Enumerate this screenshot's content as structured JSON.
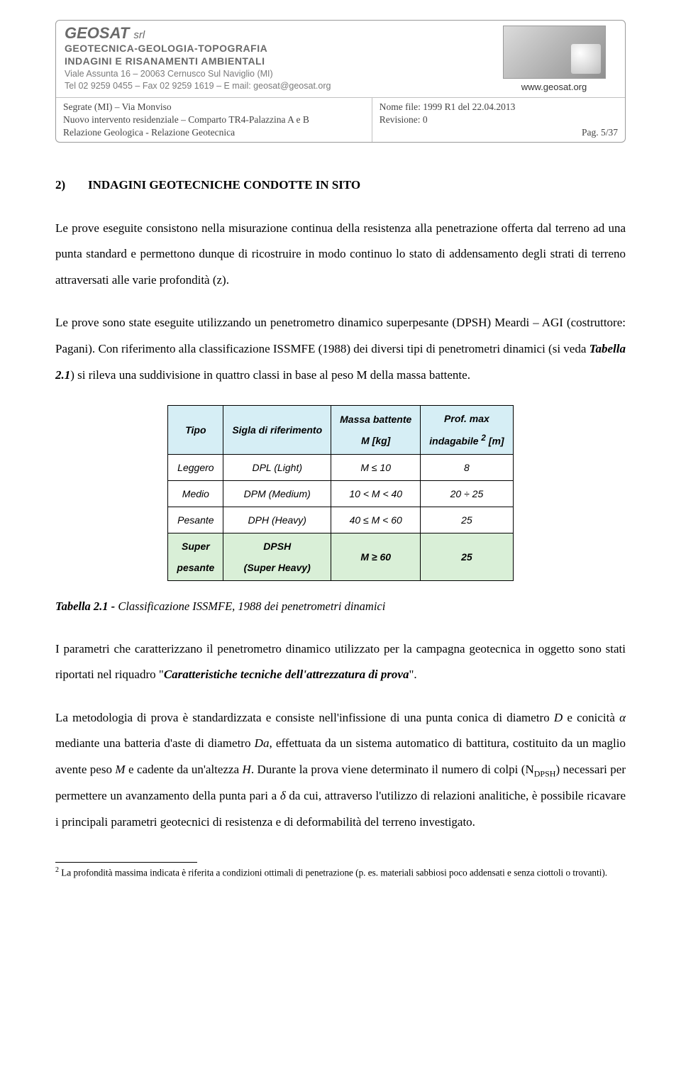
{
  "header": {
    "company": "GEOSAT",
    "company_suffix": "srl",
    "subtitle1": "GEOTECNICA-GEOLOGIA-TOPOGRAFIA",
    "subtitle2": "INDAGINI E RISANAMENTI AMBIENTALI",
    "addr1": "Viale Assunta 16 – 20063 Cernusco Sul Naviglio (MI)",
    "addr2": "Tel 02 9259 0455 – Fax 02 9259 1619 – E mail: geosat@geosat.org",
    "logo_caption": "www.geosat.org",
    "bl1": "Segrate (MI) – Via Monviso",
    "bl2": "Nuovo intervento residenziale – Comparto TR4-Palazzina A e B",
    "bl3": "Relazione Geologica - Relazione Geotecnica",
    "br1": "Nome file: 1999 R1 del 22.04.2013",
    "br2": "Revisione: 0",
    "br3": "Pag. 5/37"
  },
  "section": {
    "num": "2)",
    "title": "INDAGINI GEOTECNICHE CONDOTTE IN SITO"
  },
  "p1": "Le prove eseguite consistono nella misurazione continua della resistenza alla penetrazione offerta dal terreno ad una punta standard e permettono dunque di ricostruire in modo continuo lo stato di addensamento degli strati di terreno attraversati alle varie profondità (z).",
  "p2a": "Le prove sono state eseguite utilizzando un penetrometro dinamico superpesante (DPSH) Meardi – AGI (costruttore: Pagani). Con riferimento alla classificazione ISSMFE (1988) dei diversi tipi di penetrometri dinamici (si veda ",
  "p2b": "Tabella 2.1",
  "p2c": ") si rileva una suddivisione in quattro classi in base al peso M della massa battente.",
  "table": {
    "headers": [
      "Tipo",
      "Sigla di riferimento",
      "Massa battente\nM [kg]",
      "Prof. max\nindagabile ² [m]"
    ],
    "h2a": "Massa battente",
    "h2b": "M [kg]",
    "h3a": "Prof. max",
    "h3b": "indagabile ",
    "h3sup": "2",
    "h3c": " [m]",
    "rows": [
      [
        "Leggero",
        "DPL (Light)",
        "M ≤ 10",
        "8"
      ],
      [
        "Medio",
        "DPM (Medium)",
        "10 < M < 40",
        "20 ÷ 25"
      ],
      [
        "Pesante",
        "DPH (Heavy)",
        "40 ≤ M < 60",
        "25"
      ]
    ],
    "hlrow": {
      "c0a": "Super",
      "c0b": "pesante",
      "c1a": "DPSH",
      "c1b": "(Super Heavy)",
      "c2": "M ≥ 60",
      "c3": "25"
    },
    "colors": {
      "header_bg": "#d6eef5",
      "highlight_bg": "#d9efd7",
      "border": "#000000"
    }
  },
  "caption": {
    "label": "Tabella 2.1 - ",
    "text": "Classificazione ISSMFE, 1988 dei penetrometri dinamici"
  },
  "p3a": "I parametri che caratterizzano il penetrometro dinamico utilizzato per la campagna geotecnica in oggetto sono stati riportati nel riquadro \"",
  "p3b": "Caratteristiche tecniche dell'attrezzatura di prova",
  "p3c": "\".",
  "p4a": "La metodologia di prova è standardizzata e consiste nell'infissione di una punta conica di diametro ",
  "p4D": "D",
  "p4b": " e conicità ",
  "p4alpha": "α",
  "p4c": " mediante una batteria d'aste di diametro ",
  "p4Da": "Da",
  "p4d": ", effettuata da un sistema automatico di battitura, costituito da un maglio avente peso ",
  "p4M": "M",
  "p4e": " e cadente da un'altezza ",
  "p4H": "H",
  "p4f": ". Durante la prova viene determinato il numero di colpi (N",
  "p4sub": "DPSH",
  "p4g": ") necessari per permettere un avanzamento della punta pari a ",
  "p4delta": "δ",
  "p4h": " da cui, attraverso l'utilizzo di relazioni analitiche, è possibile ricavare i principali parametri geotecnici di resistenza e di deformabilità del terreno investigato.",
  "footnote": {
    "num": "2",
    "text": " La profondità massima indicata è riferita a condizioni ottimali di penetrazione (p. es. materiali sabbiosi poco addensati e senza ciottoli o trovanti)."
  }
}
